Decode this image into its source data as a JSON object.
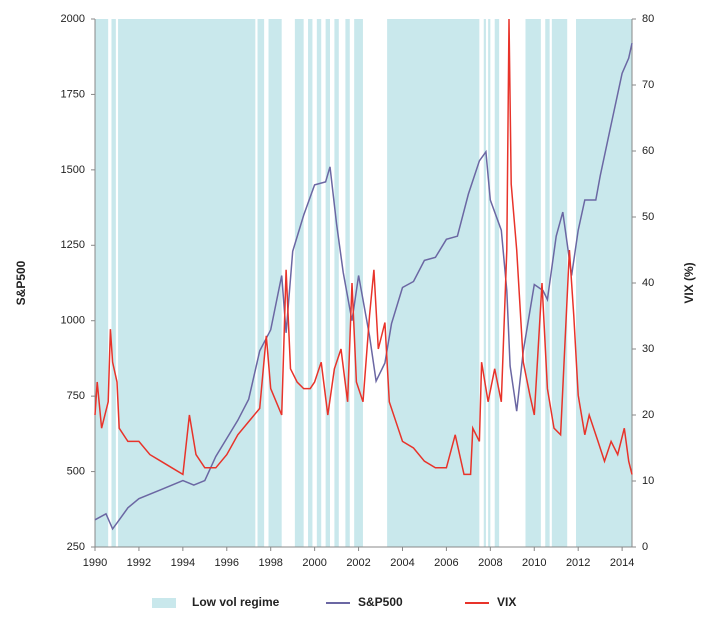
{
  "chart_data": {
    "type": "line",
    "y_label": "S&P500",
    "y2_label": "VIX (%)",
    "xlim": [
      1990,
      2014.45
    ],
    "xticks": [
      1990,
      1992,
      1994,
      1996,
      1998,
      2000,
      2002,
      2004,
      2006,
      2008,
      2010,
      2012,
      2014
    ],
    "ylim": [
      250,
      2000
    ],
    "yticks": [
      250,
      500,
      750,
      1000,
      1250,
      1500,
      1750,
      2000
    ],
    "y2lim": [
      0,
      80
    ],
    "y2ticks": [
      0,
      10,
      20,
      30,
      40,
      50,
      60,
      70,
      80
    ],
    "regions": {
      "name": "Low vol regime",
      "color": "#c9e8ec",
      "spans": [
        [
          1990.0,
          1990.6
        ],
        [
          1990.75,
          1990.95
        ],
        [
          1991.05,
          1997.3
        ],
        [
          1997.4,
          1997.7
        ],
        [
          1997.9,
          1998.5
        ],
        [
          1999.1,
          1999.5
        ],
        [
          1999.7,
          1999.9
        ],
        [
          2000.1,
          2000.3
        ],
        [
          2000.5,
          2000.7
        ],
        [
          2000.9,
          2001.1
        ],
        [
          2001.4,
          2001.6
        ],
        [
          2001.8,
          2002.2
        ],
        [
          2003.3,
          2007.5
        ],
        [
          2007.7,
          2007.8
        ],
        [
          2007.9,
          2008.0
        ],
        [
          2008.2,
          2008.4
        ],
        [
          2009.6,
          2010.3
        ],
        [
          2010.5,
          2010.7
        ],
        [
          2010.8,
          2011.5
        ],
        [
          2011.9,
          2014.45
        ]
      ]
    },
    "series": [
      {
        "name": "S&P500",
        "color": "#6b67a3",
        "axis": "y",
        "x": [
          1990.0,
          1990.5,
          1990.8,
          1991.0,
          1991.5,
          1992,
          1993,
          1994,
          1994.5,
          1995,
          1995.5,
          1996,
          1996.5,
          1997,
          1997.5,
          1998,
          1998.5,
          1998.7,
          1999,
          1999.5,
          2000,
          2000.5,
          2000.7,
          2001,
          2001.3,
          2001.7,
          2002,
          2002.5,
          2002.8,
          2003.2,
          2003.5,
          2004,
          2004.5,
          2005,
          2005.5,
          2006,
          2006.5,
          2007,
          2007.5,
          2007.8,
          2008,
          2008.5,
          2008.75,
          2008.9,
          2009.2,
          2009.5,
          2010,
          2010.4,
          2010.6,
          2011,
          2011.3,
          2011.7,
          2012,
          2012.3,
          2012.8,
          2013,
          2013.5,
          2014,
          2014.3,
          2014.45
        ],
        "values": [
          340,
          360,
          310,
          330,
          380,
          410,
          440,
          470,
          455,
          470,
          550,
          610,
          670,
          740,
          900,
          970,
          1150,
          960,
          1230,
          1350,
          1450,
          1460,
          1510,
          1320,
          1160,
          1000,
          1150,
          950,
          800,
          860,
          990,
          1110,
          1130,
          1200,
          1210,
          1270,
          1280,
          1420,
          1530,
          1560,
          1400,
          1300,
          1100,
          850,
          700,
          900,
          1120,
          1100,
          1070,
          1280,
          1360,
          1150,
          1300,
          1400,
          1400,
          1480,
          1650,
          1820,
          1870,
          1920
        ]
      },
      {
        "name": "VIX",
        "color": "#e8332a",
        "axis": "y2",
        "x": [
          1990.0,
          1990.1,
          1990.3,
          1990.6,
          1990.7,
          1990.8,
          1991.0,
          1991.1,
          1991.5,
          1992,
          1992.5,
          1993,
          1993.5,
          1994,
          1994.3,
          1994.6,
          1995,
          1995.5,
          1996,
          1996.5,
          1997,
          1997.5,
          1997.8,
          1998,
          1998.5,
          1998.7,
          1998.9,
          1999.2,
          1999.5,
          1999.8,
          2000,
          2000.3,
          2000.6,
          2000.9,
          2001.2,
          2001.5,
          2001.7,
          2001.9,
          2002.2,
          2002.5,
          2002.7,
          2002.9,
          2003.2,
          2003.4,
          2003.8,
          2004,
          2004.5,
          2005,
          2005.5,
          2006,
          2006.4,
          2006.8,
          2007.1,
          2007.2,
          2007.5,
          2007.6,
          2007.9,
          2008.2,
          2008.5,
          2008.75,
          2008.85,
          2008.95,
          2009.2,
          2009.5,
          2009.8,
          2010,
          2010.35,
          2010.6,
          2010.9,
          2011.2,
          2011.6,
          2011.8,
          2012,
          2012.3,
          2012.5,
          2012.9,
          2013.2,
          2013.5,
          2013.8,
          2014.1,
          2014.3,
          2014.45
        ],
        "values": [
          20,
          25,
          18,
          22,
          33,
          28,
          25,
          18,
          16,
          16,
          14,
          13,
          12,
          11,
          20,
          14,
          12,
          12,
          14,
          17,
          19,
          21,
          32,
          24,
          20,
          42,
          27,
          25,
          24,
          24,
          25,
          28,
          20,
          27,
          30,
          22,
          40,
          25,
          22,
          35,
          42,
          30,
          34,
          22,
          18,
          16,
          15,
          13,
          12,
          12,
          17,
          11,
          11,
          18,
          16,
          28,
          22,
          27,
          22,
          45,
          80,
          55,
          45,
          28,
          23,
          20,
          40,
          24,
          18,
          17,
          45,
          35,
          23,
          17,
          20,
          16,
          13,
          16,
          14,
          18,
          13,
          11
        ]
      }
    ]
  }
}
